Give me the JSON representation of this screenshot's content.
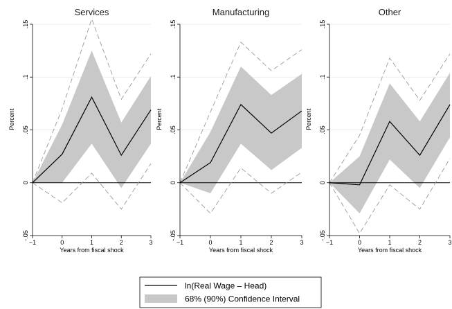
{
  "chart_data": [
    {
      "type": "line",
      "title": "Services",
      "xlabel": "Years from fiscal shock",
      "ylabel": "Percent",
      "x": [
        -1,
        0,
        1,
        2,
        3
      ],
      "xticks": [
        "-1",
        "0",
        "1",
        "2",
        "3"
      ],
      "yticks": [
        "-.05",
        "0",
        ".05",
        ".1",
        ".15"
      ],
      "ylim": [
        -0.05,
        0.15
      ],
      "series": [
        {
          "name": "ln(Real Wage - Head)",
          "values": [
            0,
            0.027,
            0.081,
            0.026,
            0.069
          ]
        }
      ],
      "ci68": {
        "lower": [
          0,
          0,
          0.037,
          -0.005,
          0.037
        ],
        "upper": [
          0,
          0.055,
          0.125,
          0.057,
          0.101
        ]
      },
      "ci90": {
        "lower": [
          0,
          -0.019,
          0.009,
          -0.025,
          0.018
        ],
        "upper": [
          0,
          0.07,
          0.155,
          0.079,
          0.122
        ]
      }
    },
    {
      "type": "line",
      "title": "Manufacturing",
      "xlabel": "Years from fiscal shock",
      "ylabel": "Percent",
      "x": [
        -1,
        0,
        1,
        2,
        3
      ],
      "xticks": [
        "-1",
        "0",
        "1",
        "2",
        "3"
      ],
      "yticks": [
        "-.05",
        "0",
        ".05",
        ".1",
        ".15"
      ],
      "ylim": [
        -0.05,
        0.15
      ],
      "series": [
        {
          "name": "ln(Real Wage - Head)",
          "values": [
            0,
            0.019,
            0.074,
            0.047,
            0.068
          ]
        }
      ],
      "ci68": {
        "lower": [
          0,
          -0.01,
          0.037,
          0.012,
          0.033
        ],
        "upper": [
          0,
          0.048,
          0.11,
          0.083,
          0.103
        ]
      },
      "ci90": {
        "lower": [
          0,
          -0.029,
          0.014,
          -0.01,
          0.01
        ],
        "upper": [
          0,
          0.067,
          0.133,
          0.106,
          0.126
        ]
      }
    },
    {
      "type": "line",
      "title": "Other",
      "xlabel": "Years from fiscal shock",
      "ylabel": "Percent",
      "x": [
        -1,
        0,
        1,
        2,
        3
      ],
      "xticks": [
        "-1",
        "0",
        "1",
        "2",
        "3"
      ],
      "yticks": [
        "-.05",
        "0",
        ".05",
        ".1",
        ".15"
      ],
      "ylim": [
        -0.05,
        0.15
      ],
      "series": [
        {
          "name": "ln(Real Wage - Head)",
          "values": [
            0,
            -0.002,
            0.058,
            0.026,
            0.074
          ]
        }
      ],
      "ci68": {
        "lower": [
          0,
          -0.029,
          0.022,
          -0.005,
          0.043
        ],
        "upper": [
          0,
          0.025,
          0.094,
          0.058,
          0.104
        ]
      },
      "ci90": {
        "lower": [
          0,
          -0.048,
          -0.002,
          -0.025,
          0.023
        ],
        "upper": [
          0,
          0.045,
          0.118,
          0.078,
          0.122
        ]
      }
    }
  ],
  "legend": {
    "items": [
      {
        "label": "ln(Real Wage – Head)",
        "kind": "line"
      },
      {
        "label": "68% (90%) Confidence Interval",
        "kind": "band"
      }
    ]
  },
  "colors": {
    "line": "#000000",
    "band": "#c8c8c8",
    "dashed": "#9a9a9a",
    "zero_line": "#000000",
    "grid": "#e6e6e6"
  }
}
